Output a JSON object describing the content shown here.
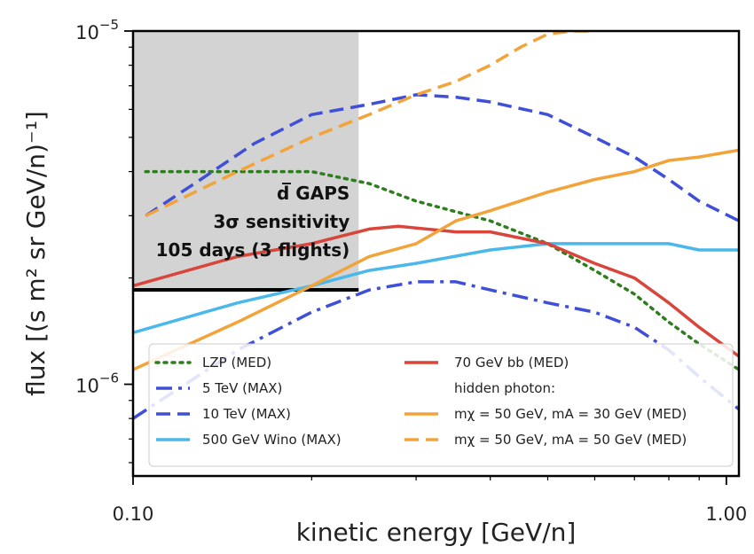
{
  "chart_data": {
    "type": "line",
    "xlabel": "kinetic energy [GeV/n]",
    "ylabel": "flux [(s m² sr GeV/n)⁻¹]",
    "xscale": "log",
    "yscale": "log",
    "xlim": [
      0.1,
      1.05
    ],
    "ylim": [
      5.5e-07,
      1e-05
    ],
    "x_ticks": [
      {
        "value": 0.1,
        "label": "0.10"
      },
      {
        "value": 1.0,
        "label": "1.00"
      }
    ],
    "y_ticks": [
      {
        "value": 1e-05,
        "base": "10",
        "exp": "−5"
      },
      {
        "value": 1e-06,
        "base": "10",
        "exp": "−6"
      }
    ],
    "grid": false,
    "legend_position": "lower-center",
    "colors": {
      "green": "#2e7d1e",
      "blue": "#3f4fd8",
      "lightblue": "#4ab8ea",
      "orange": "#f2a33a",
      "red": "#d9453a",
      "region": "#d3d3d3"
    },
    "sensitivity_region": {
      "x_range": [
        0.1,
        0.24
      ],
      "y_top": 1e-05,
      "y_bottom": 1.85e-06,
      "label_lines": [
        "d̅ GAPS",
        "3σ sensitivity",
        "105 days (3 flights)"
      ]
    },
    "series": [
      {
        "key": "lzp",
        "name": "LZP (MED)",
        "color": "#2e7d1e",
        "style": "dotted",
        "x": [
          0.105,
          0.15,
          0.2,
          0.25,
          0.3,
          0.4,
          0.5,
          0.6,
          0.7,
          0.8,
          0.9,
          1.05
        ],
        "y": [
          4e-06,
          4e-06,
          4e-06,
          3.7e-06,
          3.3e-06,
          2.9e-06,
          2.5e-06,
          2.1e-06,
          1.8e-06,
          1.5e-06,
          1.3e-06,
          1.1e-06
        ]
      },
      {
        "key": "5tev",
        "name": "5 TeV (MAX)",
        "color": "#3f4fd8",
        "style": "dashdot",
        "x": [
          0.1,
          0.15,
          0.2,
          0.25,
          0.3,
          0.35,
          0.4,
          0.5,
          0.6,
          0.7,
          0.8,
          0.9,
          1.05
        ],
        "y": [
          8e-07,
          1.25e-06,
          1.6e-06,
          1.85e-06,
          1.95e-06,
          1.95e-06,
          1.85e-06,
          1.7e-06,
          1.6e-06,
          1.45e-06,
          1.25e-06,
          1.05e-06,
          8.5e-07
        ]
      },
      {
        "key": "10tev",
        "name": "10 TeV (MAX)",
        "color": "#3f4fd8",
        "style": "dashed",
        "x": [
          0.105,
          0.13,
          0.16,
          0.2,
          0.25,
          0.3,
          0.35,
          0.4,
          0.5,
          0.6,
          0.7,
          0.8,
          0.9,
          1.05
        ],
        "y": [
          3e-06,
          3.8e-06,
          4.8e-06,
          5.8e-06,
          6.2e-06,
          6.6e-06,
          6.5e-06,
          6.3e-06,
          5.8e-06,
          5e-06,
          4.4e-06,
          3.8e-06,
          3.3e-06,
          2.9e-06
        ]
      },
      {
        "key": "wino",
        "name": "500 GeV Wino (MAX)",
        "color": "#4ab8ea",
        "style": "solid",
        "x": [
          0.1,
          0.15,
          0.2,
          0.25,
          0.3,
          0.4,
          0.5,
          0.6,
          0.7,
          0.8,
          0.9,
          1.05
        ],
        "y": [
          1.4e-06,
          1.7e-06,
          1.9e-06,
          2.1e-06,
          2.2e-06,
          2.4e-06,
          2.5e-06,
          2.5e-06,
          2.5e-06,
          2.5e-06,
          2.4e-06,
          2.4e-06
        ]
      },
      {
        "key": "70gev",
        "name": "70 GeV bb (MED)",
        "color": "#d9453a",
        "style": "solid",
        "x": [
          0.1,
          0.15,
          0.2,
          0.25,
          0.28,
          0.35,
          0.4,
          0.5,
          0.6,
          0.7,
          0.8,
          0.9,
          1.05
        ],
        "y": [
          1.9e-06,
          2.3e-06,
          2.5e-06,
          2.75e-06,
          2.8e-06,
          2.7e-06,
          2.7e-06,
          2.5e-06,
          2.2e-06,
          2e-06,
          1.7e-06,
          1.45e-06,
          1.2e-06
        ]
      },
      {
        "key": "hp30",
        "name": "mχ = 50 GeV, mA = 30 GeV (MED)",
        "color": "#f2a33a",
        "style": "solid",
        "x": [
          0.1,
          0.15,
          0.2,
          0.25,
          0.3,
          0.35,
          0.4,
          0.5,
          0.6,
          0.7,
          0.8,
          0.9,
          1.05
        ],
        "y": [
          1.1e-06,
          1.5e-06,
          1.9e-06,
          2.3e-06,
          2.5e-06,
          2.9e-06,
          3.1e-06,
          3.5e-06,
          3.8e-06,
          4e-06,
          4.3e-06,
          4.4e-06,
          4.6e-06
        ]
      },
      {
        "key": "hp50",
        "name": "mχ = 50 GeV, mA = 50 GeV (MED)",
        "color": "#f2a33a",
        "style": "dashed",
        "x": [
          0.105,
          0.15,
          0.2,
          0.25,
          0.3,
          0.35,
          0.4,
          0.45,
          0.5,
          0.55,
          0.6
        ],
        "y": [
          3e-06,
          4e-06,
          5e-06,
          5.8e-06,
          6.6e-06,
          7.2e-06,
          8e-06,
          9e-06,
          9.8e-06,
          1e-05,
          1e-05
        ]
      }
    ],
    "legend": {
      "col1": [
        {
          "series": "lzp",
          "label": "LZP (MED)"
        },
        {
          "series": "5tev",
          "label": "5 TeV (MAX)"
        },
        {
          "series": "10tev",
          "label": "10 TeV (MAX)"
        },
        {
          "series": "wino",
          "label": "500 GeV Wino (MAX)"
        }
      ],
      "col2": [
        {
          "series": "70gev",
          "label": "70 GeV bb (MED)"
        },
        {
          "series": null,
          "label": "hidden photon:"
        },
        {
          "series": "hp30",
          "label": "mχ = 50 GeV, mA = 30 GeV (MED)"
        },
        {
          "series": "hp50",
          "label": "mχ = 50 GeV, mA = 50 GeV (MED)"
        }
      ]
    }
  }
}
